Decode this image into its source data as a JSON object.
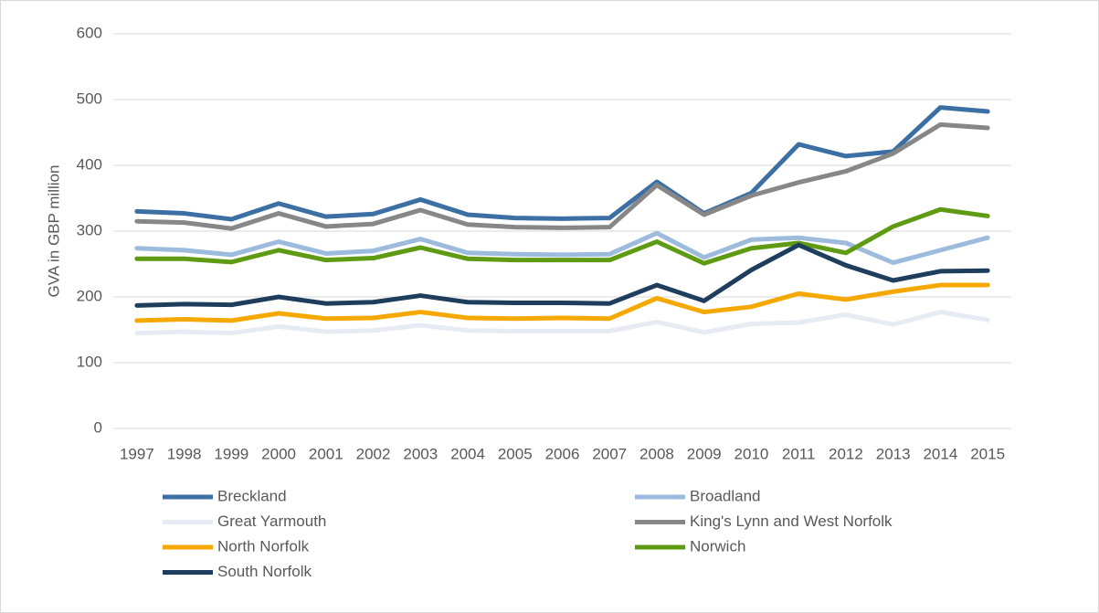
{
  "chart_data": {
    "type": "line",
    "y_label": "GVA in GBP million",
    "categories": [
      "1997",
      "1998",
      "1999",
      "2000",
      "2001",
      "2002",
      "2003",
      "2004",
      "2005",
      "2006",
      "2007",
      "2008",
      "2009",
      "2010",
      "2011",
      "2012",
      "2013",
      "2014",
      "2015"
    ],
    "series": [
      {
        "name": "Breckland",
        "color": "#3c6fa3",
        "values": [
          330,
          327,
          318,
          342,
          322,
          326,
          348,
          325,
          320,
          319,
          320,
          375,
          327,
          358,
          432,
          414,
          421,
          488,
          482
        ]
      },
      {
        "name": "Broadland",
        "color": "#9dbbdd",
        "values": [
          274,
          271,
          264,
          284,
          266,
          270,
          288,
          267,
          265,
          264,
          265,
          297,
          260,
          287,
          290,
          282,
          252,
          271,
          290
        ]
      },
      {
        "name": "Great Yarmouth",
        "color": "#e7ebf3",
        "values": [
          145,
          147,
          145,
          155,
          147,
          149,
          157,
          149,
          148,
          148,
          148,
          162,
          146,
          159,
          161,
          173,
          158,
          177,
          165
        ]
      },
      {
        "name": "King's Lynn and West Norfolk",
        "color": "#878787",
        "values": [
          315,
          313,
          304,
          327,
          307,
          311,
          332,
          310,
          306,
          305,
          306,
          370,
          325,
          354,
          374,
          391,
          418,
          462,
          457
        ]
      },
      {
        "name": "North Norfolk",
        "color": "#f5a800",
        "values": [
          164,
          166,
          164,
          175,
          167,
          168,
          177,
          168,
          167,
          168,
          167,
          198,
          177,
          185,
          205,
          196,
          208,
          218,
          218
        ]
      },
      {
        "name": "Norwich",
        "color": "#5f9a13",
        "values": [
          258,
          258,
          253,
          271,
          256,
          259,
          275,
          258,
          256,
          256,
          256,
          284,
          251,
          274,
          282,
          267,
          307,
          333,
          323
        ]
      },
      {
        "name": "South Norfolk",
        "color": "#1f3d5c",
        "values": [
          187,
          189,
          188,
          200,
          190,
          192,
          202,
          192,
          191,
          191,
          190,
          218,
          194,
          241,
          279,
          248,
          225,
          239,
          240
        ]
      }
    ],
    "ylim": [
      0,
      600
    ],
    "yticks": [
      0,
      100,
      200,
      300,
      400,
      500,
      600
    ],
    "grid": true,
    "legend": "bottom"
  }
}
